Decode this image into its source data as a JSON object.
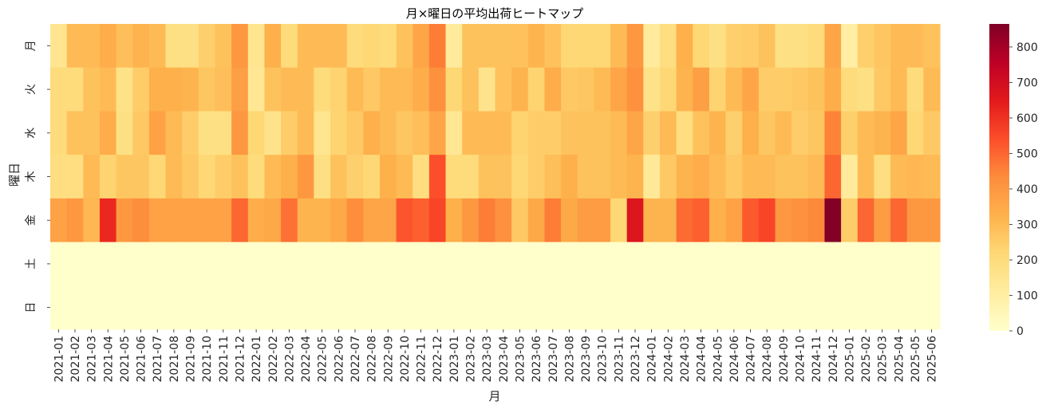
{
  "chart_data": {
    "type": "heatmap",
    "title": "月×曜日の平均出荷ヒートマップ",
    "xlabel": "月",
    "ylabel": "曜日",
    "x_categories": [
      "2021-01",
      "2021-02",
      "2021-03",
      "2021-04",
      "2021-05",
      "2021-06",
      "2021-07",
      "2021-08",
      "2021-09",
      "2021-10",
      "2021-11",
      "2021-12",
      "2022-01",
      "2022-02",
      "2022-03",
      "2022-04",
      "2022-05",
      "2022-06",
      "2022-07",
      "2022-08",
      "2022-09",
      "2022-10",
      "2022-11",
      "2022-12",
      "2023-01",
      "2023-02",
      "2023-03",
      "2023-04",
      "2023-05",
      "2023-06",
      "2023-07",
      "2023-08",
      "2023-09",
      "2023-10",
      "2023-11",
      "2023-12",
      "2024-01",
      "2024-02",
      "2024-03",
      "2024-04",
      "2024-05",
      "2024-06",
      "2024-07",
      "2024-08",
      "2024-09",
      "2024-10",
      "2024-11",
      "2024-12",
      "2025-01",
      "2025-02",
      "2025-03",
      "2025-04",
      "2025-05",
      "2025-06"
    ],
    "y_categories": [
      "月",
      "火",
      "水",
      "木",
      "金",
      "土",
      "日"
    ],
    "values": [
      [
        150,
        300,
        300,
        340,
        290,
        320,
        300,
        180,
        180,
        240,
        280,
        400,
        150,
        330,
        200,
        300,
        300,
        300,
        200,
        220,
        200,
        280,
        360,
        460,
        120,
        280,
        280,
        280,
        280,
        320,
        280,
        220,
        220,
        220,
        300,
        400,
        120,
        190,
        330,
        220,
        180,
        240,
        250,
        280,
        180,
        180,
        200,
        360,
        100,
        240,
        270,
        300,
        300,
        280
      ],
      [
        200,
        200,
        280,
        300,
        170,
        250,
        330,
        330,
        320,
        270,
        290,
        380,
        140,
        280,
        300,
        300,
        200,
        230,
        300,
        260,
        300,
        300,
        340,
        420,
        220,
        280,
        160,
        280,
        320,
        230,
        340,
        260,
        270,
        300,
        360,
        420,
        170,
        220,
        320,
        380,
        230,
        300,
        360,
        250,
        250,
        260,
        280,
        340,
        200,
        180,
        260,
        300,
        200,
        300
      ],
      [
        200,
        280,
        280,
        340,
        180,
        260,
        370,
        300,
        250,
        180,
        180,
        400,
        220,
        160,
        250,
        300,
        150,
        230,
        260,
        330,
        300,
        270,
        290,
        360,
        140,
        300,
        300,
        300,
        230,
        250,
        250,
        280,
        280,
        280,
        300,
        360,
        240,
        300,
        190,
        280,
        320,
        240,
        330,
        270,
        300,
        250,
        270,
        450,
        240,
        300,
        320,
        360,
        220,
        260
      ],
      [
        190,
        190,
        300,
        230,
        270,
        270,
        220,
        300,
        260,
        220,
        250,
        280,
        200,
        300,
        330,
        400,
        180,
        280,
        240,
        220,
        330,
        300,
        190,
        540,
        200,
        200,
        280,
        280,
        220,
        250,
        290,
        330,
        280,
        280,
        300,
        320,
        130,
        260,
        320,
        340,
        300,
        260,
        300,
        300,
        280,
        280,
        300,
        500,
        120,
        300,
        190,
        300,
        310,
        300
      ],
      [
        370,
        400,
        310,
        620,
        400,
        430,
        370,
        370,
        370,
        370,
        370,
        500,
        340,
        350,
        480,
        320,
        320,
        350,
        430,
        360,
        360,
        530,
        510,
        560,
        330,
        400,
        460,
        420,
        260,
        350,
        460,
        350,
        390,
        390,
        220,
        670,
        320,
        320,
        490,
        510,
        330,
        370,
        520,
        560,
        400,
        420,
        440,
        860,
        250,
        500,
        390,
        500,
        400,
        400
      ],
      [
        0,
        0,
        0,
        0,
        0,
        0,
        0,
        0,
        0,
        0,
        0,
        0,
        0,
        0,
        0,
        0,
        0,
        0,
        0,
        0,
        0,
        0,
        0,
        0,
        0,
        0,
        0,
        0,
        0,
        0,
        0,
        0,
        0,
        0,
        0,
        0,
        0,
        0,
        0,
        0,
        0,
        0,
        0,
        0,
        0,
        0,
        0,
        0,
        0,
        0,
        0,
        0,
        0,
        0
      ],
      [
        0,
        0,
        0,
        0,
        0,
        0,
        0,
        0,
        0,
        0,
        0,
        0,
        0,
        0,
        0,
        0,
        0,
        0,
        0,
        0,
        0,
        0,
        0,
        0,
        0,
        0,
        0,
        0,
        0,
        0,
        0,
        0,
        0,
        0,
        0,
        0,
        0,
        0,
        0,
        0,
        0,
        0,
        0,
        0,
        0,
        0,
        0,
        0,
        0,
        0,
        0,
        0,
        0,
        0
      ]
    ],
    "colorbar": {
      "colormap": "YlOrRd",
      "range": [
        0,
        865
      ],
      "ticks": [
        "0",
        "100",
        "200",
        "300",
        "400",
        "500",
        "600",
        "700",
        "800"
      ]
    }
  }
}
